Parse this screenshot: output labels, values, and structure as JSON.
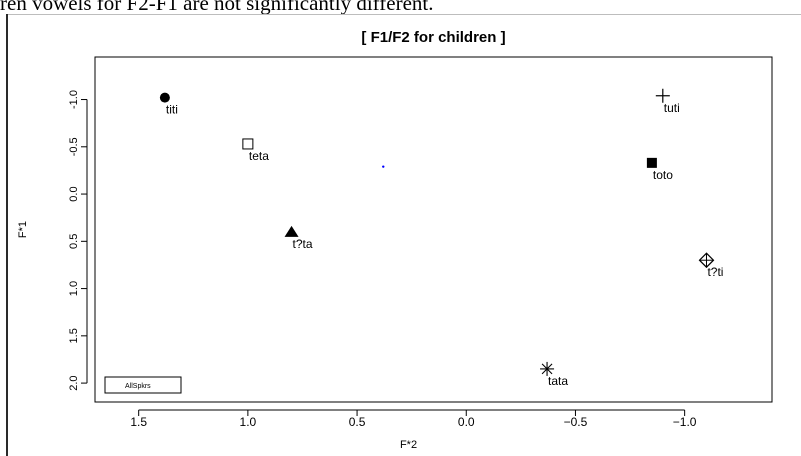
{
  "page": {
    "caption_text": "ren vowels for F2-F1 are not significantly different."
  },
  "chart_data": {
    "type": "scatter",
    "title": "[ F1/F2 for children ]",
    "xlabel": "F*2",
    "ylabel": "F*1",
    "xlim": [
      1.7,
      -1.4
    ],
    "ylim": [
      -1.45,
      2.2
    ],
    "x_reversed": true,
    "y_reversed": true,
    "x_ticks": [
      1.5,
      1.0,
      0.5,
      0.0,
      -0.5,
      -1.0
    ],
    "x_tick_labels": [
      "1.5",
      "1.0",
      "0.5",
      "0.0",
      "−0.5",
      "−1.0"
    ],
    "y_ticks": [
      -1.0,
      -0.5,
      0.0,
      0.5,
      1.0,
      1.5,
      2.0
    ],
    "y_tick_labels": [
      "-1.0",
      "-0.5",
      "0.0",
      "0.5",
      "1.0",
      "1.5",
      "2.0"
    ],
    "legend": {
      "label": "AllSpkrs",
      "placement": "bottom-left"
    },
    "points": [
      {
        "label": "titi",
        "x": 1.38,
        "y": -1.02,
        "marker": "filled-circle"
      },
      {
        "label": "teta",
        "x": 1.0,
        "y": -0.53,
        "marker": "open-square"
      },
      {
        "label": "t?ta",
        "x": 0.8,
        "y": 0.4,
        "marker": "filled-triangle"
      },
      {
        "label": "tuti",
        "x": -0.9,
        "y": -1.04,
        "marker": "plus"
      },
      {
        "label": "toto",
        "x": -0.85,
        "y": -0.33,
        "marker": "filled-square"
      },
      {
        "label": "t?ti",
        "x": -1.1,
        "y": 0.7,
        "marker": "diamond-plus"
      },
      {
        "label": "tata",
        "x": -0.37,
        "y": 1.85,
        "marker": "asterisk"
      }
    ],
    "annotations": [
      {
        "x": 0.38,
        "y": -0.29,
        "kind": "small-blue-dot"
      }
    ],
    "grid": false,
    "colors": {
      "axis": "#000000",
      "marker": "#000000",
      "annotation": "#0000ff"
    }
  }
}
